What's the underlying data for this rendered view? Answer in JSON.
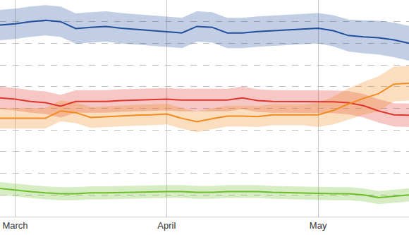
{
  "chart_data": {
    "type": "line",
    "categories": [
      null,
      "March",
      null,
      null,
      null,
      null,
      null,
      null,
      null,
      null,
      null,
      "April",
      null,
      null,
      null,
      null,
      null,
      null,
      null,
      null,
      null,
      "May",
      null,
      null,
      null,
      null,
      null,
      null
    ],
    "series": [
      {
        "color": "#1f4e9c",
        "values": [
          44.2,
          44.5,
          45.0,
          45.3,
          45.0,
          43.4,
          43.7,
          43.9,
          43.5,
          43.2,
          42.9,
          42.6,
          42.4,
          43.9,
          43.7,
          42.4,
          42.4,
          42.7,
          42.9,
          43.2,
          43.4,
          43.5,
          42.9,
          41.8,
          41.5,
          41.3,
          40.8,
          40.0
        ],
        "error": [
          3.5,
          3.5,
          3.5,
          3.5,
          3.5,
          3.5,
          3.5,
          3.5,
          3.5,
          3.5,
          3.5,
          3.5,
          3.5,
          3.5,
          3.5,
          3.5,
          3.5,
          3.5,
          3.5,
          3.5,
          3.5,
          3.5,
          3.6,
          3.7,
          3.8,
          3.9,
          4.0,
          4.0
        ]
      },
      {
        "color": "#e0352b",
        "values": [
          27.4,
          27.1,
          26.6,
          26.3,
          25.5,
          26.6,
          26.6,
          26.6,
          26.8,
          26.9,
          27.1,
          27.1,
          26.9,
          26.9,
          26.9,
          26.9,
          27.4,
          26.8,
          26.6,
          26.6,
          26.6,
          26.6,
          26.5,
          26.3,
          25.6,
          24.4,
          23.5,
          23.4
        ],
        "error": [
          2.6,
          2.6,
          2.6,
          2.6,
          2.6,
          2.6,
          2.6,
          2.6,
          2.6,
          2.6,
          2.6,
          2.6,
          2.6,
          2.6,
          2.6,
          2.6,
          2.6,
          2.6,
          2.6,
          2.6,
          2.6,
          2.6,
          2.6,
          2.7,
          2.7,
          2.7,
          2.7,
          2.7
        ]
      },
      {
        "color": "#f28a1c",
        "values": [
          22.7,
          22.7,
          22.6,
          22.7,
          24.4,
          24.0,
          22.9,
          23.1,
          23.2,
          23.4,
          23.5,
          23.7,
          22.7,
          21.9,
          22.6,
          23.2,
          23.2,
          23.1,
          23.5,
          23.5,
          23.5,
          23.5,
          24.5,
          26.0,
          27.3,
          28.4,
          30.6,
          30.8
        ],
        "error": [
          2.4,
          2.4,
          2.4,
          2.4,
          2.4,
          2.4,
          2.4,
          2.4,
          2.4,
          2.4,
          2.4,
          2.4,
          2.4,
          2.4,
          2.4,
          2.4,
          2.4,
          2.4,
          2.4,
          2.4,
          2.4,
          2.8,
          3.2,
          3.6,
          3.8,
          4.0,
          4.0,
          4.0
        ]
      },
      {
        "color": "#6cbf2a",
        "values": [
          6.5,
          6.1,
          5.8,
          5.5,
          5.3,
          5.3,
          5.5,
          5.5,
          5.6,
          5.6,
          5.8,
          5.8,
          5.8,
          5.6,
          5.6,
          5.8,
          5.8,
          5.8,
          5.6,
          5.5,
          5.5,
          5.3,
          5.3,
          5.3,
          5.0,
          4.4,
          4.7,
          5.0
        ],
        "error": [
          1.5,
          1.5,
          1.5,
          1.5,
          1.5,
          1.5,
          1.5,
          1.5,
          1.5,
          1.5,
          1.5,
          1.5,
          1.5,
          1.5,
          1.5,
          1.5,
          1.5,
          1.5,
          1.5,
          1.5,
          1.5,
          1.5,
          1.5,
          1.5,
          1.5,
          1.5,
          1.5,
          1.5
        ]
      }
    ],
    "ylim": [
      0,
      50
    ],
    "yticks": [
      0,
      5,
      10,
      15,
      20,
      25,
      30,
      35,
      40,
      45,
      50
    ],
    "grid": true,
    "tick_labels": "x"
  }
}
